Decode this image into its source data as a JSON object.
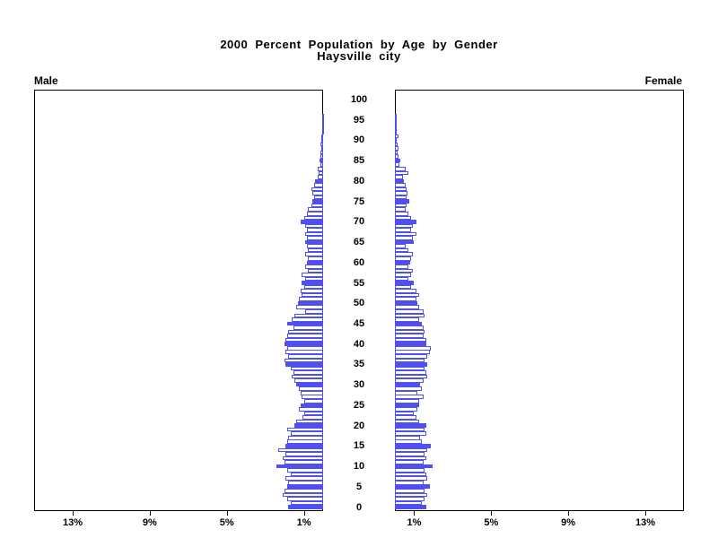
{
  "title": {
    "line1": "2000 Percent Population by Age by Gender",
    "line2": "Haysville city"
  },
  "panel_labels": {
    "male": "Male",
    "female": "Female"
  },
  "colors": {
    "bar_outline": "#5050f0",
    "bar_fill_highlight": "#5050f0",
    "bar_fill_normal": "#ffffff",
    "axis": "#000000",
    "text": "#000000"
  },
  "chart_data": {
    "type": "bar",
    "variant": "population-pyramid",
    "title": "2000 Percent Population by Age by Gender",
    "subtitle": "Haysville city",
    "orientation": "horizontal-mirrored",
    "age_axis_ticks": [
      0,
      5,
      10,
      15,
      20,
      25,
      30,
      35,
      40,
      45,
      50,
      55,
      60,
      65,
      70,
      75,
      80,
      85,
      90,
      95,
      100
    ],
    "pct_axis_ticks": [
      1,
      5,
      9,
      13
    ],
    "pct_axis_tick_labels": [
      "1%",
      "5%",
      "9%",
      "13%"
    ],
    "xlim_pct": [
      0,
      15
    ],
    "highlight_multiple_of": 5,
    "ages_by_index": "index of values array = single year of age, 0 through 100",
    "series": [
      {
        "name": "Male",
        "side": "left",
        "values": [
          1.8,
          1.7,
          1.85,
          2.1,
          2.0,
          1.85,
          1.8,
          1.95,
          1.7,
          1.85,
          2.4,
          2.0,
          2.1,
          1.95,
          2.35,
          1.95,
          1.85,
          1.8,
          1.7,
          1.85,
          1.5,
          1.4,
          1.05,
          1.0,
          1.25,
          1.15,
          1.0,
          1.1,
          1.15,
          1.25,
          1.4,
          1.5,
          1.65,
          1.55,
          1.7,
          1.95,
          2.0,
          1.8,
          1.95,
          1.85,
          2.0,
          1.95,
          1.85,
          1.8,
          1.55,
          1.85,
          1.65,
          1.5,
          0.95,
          1.4,
          1.3,
          1.25,
          1.1,
          1.15,
          1.0,
          1.1,
          0.95,
          1.1,
          0.8,
          0.95,
          0.85,
          0.8,
          0.95,
          0.8,
          0.85,
          0.95,
          0.85,
          0.95,
          0.85,
          0.95,
          1.15,
          1.0,
          0.85,
          0.8,
          0.6,
          0.55,
          0.45,
          0.55,
          0.6,
          0.45,
          0.4,
          0.3,
          0.25,
          0.28,
          0.15,
          0.2,
          0.12,
          0.15,
          0.1,
          0.12,
          0.08,
          0.1,
          0.05,
          0.06,
          0.03,
          0.03,
          0.03,
          0,
          0,
          0,
          0
        ]
      },
      {
        "name": "Female",
        "side": "right",
        "values": [
          1.65,
          1.4,
          1.55,
          1.7,
          1.55,
          1.8,
          1.5,
          1.7,
          1.65,
          1.55,
          1.95,
          1.5,
          1.65,
          1.55,
          1.7,
          1.85,
          1.4,
          1.3,
          1.65,
          1.55,
          1.65,
          1.25,
          1.1,
          1.0,
          1.15,
          1.25,
          1.25,
          1.5,
          1.15,
          1.4,
          1.3,
          1.5,
          1.7,
          1.65,
          1.55,
          1.7,
          1.55,
          1.7,
          1.8,
          1.85,
          1.65,
          1.65,
          1.5,
          1.55,
          1.5,
          1.4,
          1.25,
          1.55,
          1.5,
          1.25,
          1.15,
          1.1,
          1.25,
          1.1,
          0.85,
          1.0,
          0.7,
          0.85,
          0.95,
          0.7,
          0.8,
          0.85,
          0.95,
          0.7,
          0.55,
          1.0,
          0.95,
          1.1,
          0.85,
          0.95,
          1.1,
          0.85,
          0.7,
          0.55,
          0.6,
          0.75,
          0.6,
          0.65,
          0.6,
          0.55,
          0.45,
          0.4,
          0.7,
          0.55,
          0.25,
          0.3,
          0.2,
          0.15,
          0.2,
          0.12,
          0.1,
          0.2,
          0.08,
          0.06,
          0.05,
          0.05,
          0.03,
          0,
          0,
          0,
          0
        ]
      }
    ]
  }
}
